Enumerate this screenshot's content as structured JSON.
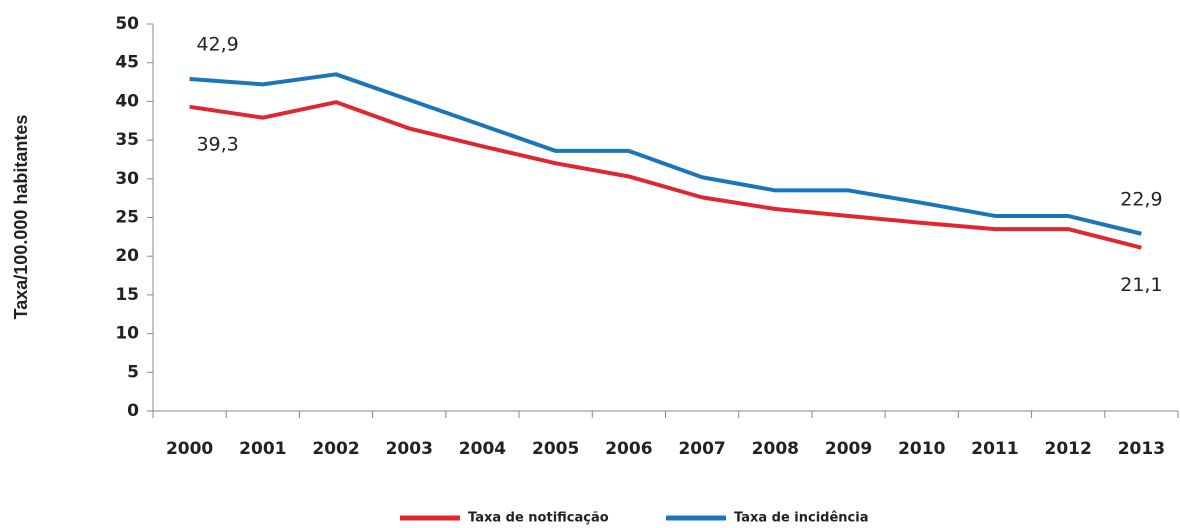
{
  "chart_data": {
    "type": "line",
    "y_label": "Taxa/100.000 habitantes",
    "categories": [
      "2000",
      "2001",
      "2002",
      "2003",
      "2004",
      "2005",
      "2006",
      "2007",
      "2008",
      "2009",
      "2010",
      "2011",
      "2012",
      "2013"
    ],
    "series": [
      {
        "name": "Taxa de notificação",
        "color": "#e0262e",
        "values": [
          39.3,
          37.9,
          39.9,
          36.5,
          34.2,
          32.0,
          30.3,
          27.6,
          26.1,
          25.2,
          24.3,
          23.5,
          23.5,
          21.1
        ],
        "value_labels": [
          "39,3",
          null,
          null,
          null,
          null,
          null,
          null,
          null,
          null,
          null,
          null,
          null,
          null,
          "21,1"
        ]
      },
      {
        "name": "Taxa de incidência",
        "color": "#1b75bb",
        "values": [
          42.9,
          42.2,
          43.5,
          40.2,
          36.9,
          33.6,
          33.6,
          30.2,
          28.5,
          28.5,
          26.9,
          25.2,
          25.2,
          22.9
        ],
        "value_labels": [
          "42,9",
          null,
          null,
          null,
          null,
          null,
          null,
          null,
          null,
          null,
          null,
          null,
          null,
          "22,9"
        ]
      }
    ],
    "ylim": [
      0,
      50
    ],
    "yticks": [
      0,
      5,
      10,
      15,
      20,
      25,
      30,
      35,
      40,
      45,
      50
    ],
    "legend": "bottom"
  }
}
